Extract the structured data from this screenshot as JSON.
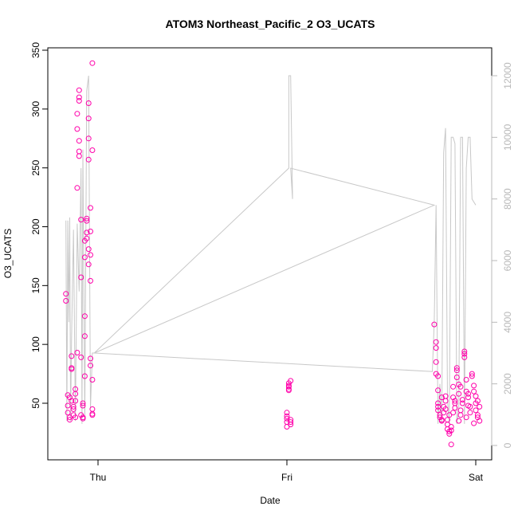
{
  "chart_data": {
    "type": "scatter",
    "title": "ATOM3 Northeast_Pacific_2 O3_UCATS",
    "xlabel": "Date",
    "ylabel": "O3_UCATS",
    "x_ticks": [
      "Thu",
      "Fri",
      "Sat"
    ],
    "y_ticks": [
      "50",
      "100",
      "150",
      "200",
      "250",
      "300",
      "350"
    ],
    "y2_ticks": [
      "0",
      "2000",
      "4000",
      "6000",
      "8000",
      "10000",
      "12000"
    ],
    "ylim": [
      25,
      350
    ],
    "y2lim": [
      0,
      12000
    ],
    "grid": false,
    "colors": {
      "points": "#ff00aa",
      "altitude_line": "#c8c8c8",
      "axes": "#000000",
      "right_axis": "#b8b8b8"
    },
    "series": [
      {
        "kind": "points",
        "points": [
          [
            -0.17,
            143
          ],
          [
            -0.17,
            137
          ],
          [
            -0.16,
            57
          ],
          [
            -0.16,
            48
          ],
          [
            -0.16,
            42
          ],
          [
            -0.15,
            38
          ],
          [
            -0.15,
            36
          ],
          [
            -0.15,
            55
          ],
          [
            -0.14,
            52
          ],
          [
            -0.14,
            90
          ],
          [
            -0.14,
            80
          ],
          [
            -0.14,
            79
          ],
          [
            -0.13,
            47
          ],
          [
            -0.13,
            45
          ],
          [
            -0.13,
            40
          ],
          [
            -0.12,
            38
          ],
          [
            -0.12,
            62
          ],
          [
            -0.12,
            58
          ],
          [
            -0.12,
            52
          ],
          [
            -0.11,
            93
          ],
          [
            -0.11,
            233
          ],
          [
            -0.11,
            296
          ],
          [
            -0.11,
            283
          ],
          [
            -0.1,
            316
          ],
          [
            -0.1,
            310
          ],
          [
            -0.1,
            307
          ],
          [
            -0.1,
            264
          ],
          [
            -0.1,
            260
          ],
          [
            -0.1,
            273
          ],
          [
            -0.09,
            157
          ],
          [
            -0.09,
            206
          ],
          [
            -0.09,
            89
          ],
          [
            -0.09,
            40
          ],
          [
            -0.08,
            38
          ],
          [
            -0.08,
            37
          ],
          [
            -0.08,
            50
          ],
          [
            -0.08,
            48
          ],
          [
            -0.07,
            107
          ],
          [
            -0.07,
            73
          ],
          [
            -0.07,
            124
          ],
          [
            -0.07,
            174
          ],
          [
            -0.07,
            188
          ],
          [
            -0.06,
            190
          ],
          [
            -0.06,
            195
          ],
          [
            -0.06,
            205
          ],
          [
            -0.06,
            207
          ],
          [
            -0.05,
            305
          ],
          [
            -0.05,
            292
          ],
          [
            -0.05,
            275
          ],
          [
            -0.05,
            257
          ],
          [
            -0.05,
            181
          ],
          [
            -0.05,
            168
          ],
          [
            -0.04,
            216
          ],
          [
            -0.04,
            196
          ],
          [
            -0.04,
            176
          ],
          [
            -0.04,
            154
          ],
          [
            -0.04,
            88
          ],
          [
            -0.04,
            82
          ],
          [
            -0.03,
            70
          ],
          [
            -0.03,
            265
          ],
          [
            -0.03,
            339
          ],
          [
            -0.03,
            45
          ],
          [
            -0.03,
            41
          ],
          [
            -0.03,
            40
          ],
          [
            1.0,
            42
          ],
          [
            1.0,
            39
          ],
          [
            1.0,
            37
          ],
          [
            1.0,
            34
          ],
          [
            1.0,
            30
          ],
          [
            1.01,
            64
          ],
          [
            1.01,
            62
          ],
          [
            1.01,
            61
          ],
          [
            1.01,
            65
          ],
          [
            1.01,
            67
          ],
          [
            1.02,
            69
          ],
          [
            1.02,
            36
          ],
          [
            1.02,
            34
          ],
          [
            1.02,
            32
          ],
          [
            1.78,
            117
          ],
          [
            1.79,
            102
          ],
          [
            1.79,
            97
          ],
          [
            1.79,
            85
          ],
          [
            1.79,
            75
          ],
          [
            1.8,
            73
          ],
          [
            1.8,
            61
          ],
          [
            1.8,
            50
          ],
          [
            1.8,
            47
          ],
          [
            1.8,
            44
          ],
          [
            1.81,
            40
          ],
          [
            1.81,
            38
          ],
          [
            1.82,
            36
          ],
          [
            1.82,
            35
          ],
          [
            1.83,
            47
          ],
          [
            1.83,
            42
          ],
          [
            1.84,
            56
          ],
          [
            1.84,
            52
          ],
          [
            1.84,
            45
          ],
          [
            1.85,
            36
          ],
          [
            1.85,
            32
          ],
          [
            1.85,
            28
          ],
          [
            1.86,
            26
          ],
          [
            1.86,
            24
          ],
          [
            1.87,
            30
          ],
          [
            1.87,
            15
          ],
          [
            1.87,
            27
          ],
          [
            1.88,
            64
          ],
          [
            1.88,
            55
          ],
          [
            1.89,
            52
          ],
          [
            1.89,
            50
          ],
          [
            1.89,
            46
          ],
          [
            1.9,
            80
          ],
          [
            1.9,
            78
          ],
          [
            1.9,
            72
          ],
          [
            1.91,
            66
          ],
          [
            1.91,
            58
          ],
          [
            1.92,
            44
          ],
          [
            1.92,
            40
          ],
          [
            1.93,
            53
          ],
          [
            1.93,
            50
          ],
          [
            1.94,
            94
          ],
          [
            1.94,
            92
          ],
          [
            1.94,
            89
          ],
          [
            1.95,
            70
          ],
          [
            1.95,
            60
          ],
          [
            1.96,
            58
          ],
          [
            1.96,
            55
          ],
          [
            1.97,
            47
          ],
          [
            1.97,
            42
          ],
          [
            1.98,
            75
          ],
          [
            1.98,
            73
          ],
          [
            1.99,
            65
          ],
          [
            1.99,
            60
          ],
          [
            2.0,
            56
          ],
          [
            2.0,
            50
          ],
          [
            2.0,
            44
          ],
          [
            2.01,
            40
          ],
          [
            2.01,
            38
          ],
          [
            2.02,
            47
          ],
          [
            2.02,
            35
          ],
          [
            1.82,
            55
          ],
          [
            1.86,
            40
          ],
          [
            1.91,
            35
          ],
          [
            1.95,
            38
          ],
          [
            1.99,
            33
          ],
          [
            2.01,
            52
          ],
          [
            1.88,
            42
          ],
          [
            1.92,
            64
          ],
          [
            1.96,
            48
          ]
        ]
      },
      {
        "kind": "altitude",
        "points": [
          [
            -0.17,
            7300
          ],
          [
            -0.165,
            800
          ],
          [
            -0.16,
            7300
          ],
          [
            -0.155,
            4000
          ],
          [
            -0.15,
            7400
          ],
          [
            -0.145,
            800
          ],
          [
            -0.14,
            3500
          ],
          [
            -0.13,
            7000
          ],
          [
            -0.12,
            800
          ],
          [
            -0.11,
            7200
          ],
          [
            -0.1,
            5000
          ],
          [
            -0.09,
            9000
          ],
          [
            -0.085,
            700
          ],
          [
            -0.08,
            9600
          ],
          [
            -0.07,
            800
          ],
          [
            -0.06,
            11500
          ],
          [
            -0.05,
            12000
          ],
          [
            -0.04,
            1200
          ],
          [
            -0.03,
            3000
          ],
          [
            -0.02,
            3000
          ],
          [
            1.01,
            9000
          ],
          [
            1.01,
            12000
          ],
          [
            1.02,
            12000
          ],
          [
            1.03,
            8000
          ],
          [
            1.02,
            9000
          ],
          [
            1.78,
            7800
          ],
          [
            -0.02,
            3000
          ],
          [
            1.77,
            2400
          ],
          [
            1.77,
            2400
          ],
          [
            1.78,
            4000
          ],
          [
            1.79,
            7800
          ],
          [
            1.8,
            700
          ],
          [
            1.81,
            2000
          ],
          [
            1.82,
            700
          ],
          [
            1.83,
            9500
          ],
          [
            1.84,
            10300
          ],
          [
            1.85,
            1500
          ],
          [
            1.86,
            700
          ],
          [
            1.87,
            10000
          ],
          [
            1.88,
            10000
          ],
          [
            1.89,
            9800
          ],
          [
            1.9,
            700
          ],
          [
            1.91,
            1200
          ],
          [
            1.92,
            10000
          ],
          [
            1.93,
            10000
          ],
          [
            1.94,
            700
          ],
          [
            1.95,
            9000
          ],
          [
            1.96,
            10000
          ],
          [
            1.97,
            10000
          ],
          [
            1.98,
            8000
          ],
          [
            2.0,
            7800
          ]
        ]
      }
    ]
  }
}
